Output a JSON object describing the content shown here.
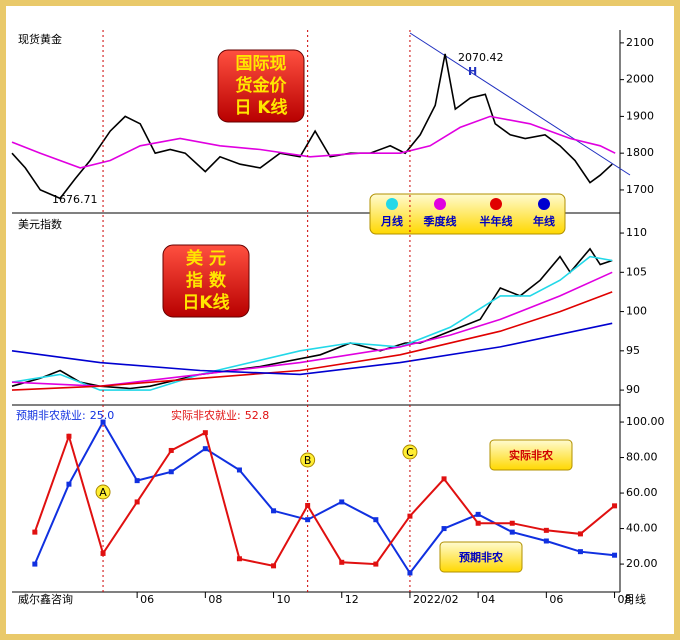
{
  "chart_data": [
    {
      "type": "line",
      "title": "现货黄金",
      "badge": [
        "国际现",
        "货金价",
        "日 K线"
      ],
      "annotations": {
        "high": "2070.42",
        "low": "1676.71",
        "mark": "H"
      },
      "xlim": [
        -0.67,
        17.16
      ],
      "ylim": [
        1640,
        2135
      ],
      "yticks": [
        1700,
        1800,
        1900,
        2000,
        2100
      ],
      "series": [
        {
          "color": "#000000",
          "x": [
            -0.67,
            -0.28,
            0.16,
            0.74,
            1.18,
            1.62,
            2.21,
            2.65,
            3.09,
            3.53,
            3.97,
            4.41,
            5.0,
            5.43,
            6.02,
            6.61,
            7.19,
            7.78,
            8.22,
            8.66,
            9.25,
            9.83,
            10.42,
            10.86,
            11.3,
            11.74,
            12.03,
            12.33,
            12.77,
            13.21,
            13.5,
            13.94,
            14.38,
            14.96,
            15.4,
            15.84,
            16.28,
            16.58,
            16.93
          ],
          "values": [
            1800,
            1760,
            1700,
            1677,
            1730,
            1780,
            1860,
            1900,
            1880,
            1800,
            1810,
            1800,
            1750,
            1790,
            1770,
            1760,
            1800,
            1790,
            1860,
            1790,
            1800,
            1800,
            1820,
            1800,
            1850,
            1930,
            2070,
            1920,
            1950,
            1960,
            1880,
            1850,
            1840,
            1850,
            1820,
            1780,
            1720,
            1740,
            1770
          ]
        },
        {
          "color": "#e000e0",
          "x": [
            -0.67,
            0.16,
            1.33,
            2.21,
            3.09,
            4.26,
            5.43,
            6.61,
            8.07,
            9.54,
            10.71,
            11.59,
            12.47,
            13.35,
            14.52,
            15.7,
            16.58,
            17.02
          ],
          "values": [
            1830,
            1800,
            1760,
            1780,
            1820,
            1840,
            1820,
            1810,
            1790,
            1800,
            1800,
            1820,
            1870,
            1900,
            1880,
            1840,
            1820,
            1800
          ]
        }
      ]
    },
    {
      "type": "line",
      "title": "美元指数",
      "badge": [
        "美 元",
        "指 数",
        "日K线"
      ],
      "xlim": [
        -0.67,
        17.16
      ],
      "ylim": [
        88.1,
        112.3
      ],
      "yticks": [
        90,
        95,
        100,
        105,
        110
      ],
      "series": [
        {
          "color": "#000000",
          "x": [
            -0.67,
            0.16,
            0.74,
            1.33,
            1.91,
            2.79,
            3.38,
            4.85,
            6.61,
            8.37,
            9.25,
            10.13,
            10.86,
            11.3,
            11.89,
            12.47,
            13.06,
            13.65,
            14.23,
            14.82,
            15.4,
            15.7,
            16.28,
            16.58,
            16.93
          ],
          "values": [
            90.5,
            91.5,
            92.5,
            91,
            90.5,
            90.2,
            90.5,
            92,
            93,
            94.5,
            96,
            95,
            96,
            96,
            97,
            98,
            99,
            103,
            102,
            104,
            107,
            105,
            108,
            106,
            106.5
          ]
        },
        {
          "name": "月线",
          "color": "#22d8e8",
          "x": [
            -0.67,
            0.74,
            1.91,
            3.38,
            4.85,
            7.78,
            9.25,
            10.71,
            12.18,
            13.65,
            14.52,
            15.4,
            16.28,
            16.93
          ],
          "values": [
            91,
            92,
            90,
            90,
            92,
            95,
            96,
            95.5,
            98,
            102,
            102,
            104,
            107,
            106.5
          ]
        },
        {
          "name": "季度线",
          "color": "#e000e0",
          "x": [
            -0.67,
            1.91,
            4.85,
            7.78,
            10.71,
            12.18,
            13.65,
            15.4,
            16.93
          ],
          "values": [
            91,
            90.5,
            92,
            93.5,
            95.5,
            97,
            99,
            102,
            105
          ]
        },
        {
          "name": "半年线",
          "color": "#e00000",
          "x": [
            -0.67,
            1.91,
            4.85,
            7.78,
            10.71,
            13.65,
            15.4,
            16.93
          ],
          "values": [
            90,
            90.5,
            91.5,
            92.5,
            94.5,
            97.5,
            100,
            102.5
          ]
        },
        {
          "name": "年线",
          "color": "#0000d0",
          "x": [
            -0.67,
            1.91,
            4.85,
            7.78,
            10.71,
            13.65,
            16.93
          ],
          "values": [
            95,
            93.5,
            92.5,
            92,
            93.5,
            95.5,
            98.5
          ]
        }
      ]
    },
    {
      "type": "line",
      "readouts": [
        {
          "label": "预期非农就业:",
          "value_label": "25.0"
        },
        {
          "label": "实际非农就业:",
          "value_label": "52.8"
        }
      ],
      "events": [
        {
          "label": "A",
          "x": 2
        },
        {
          "label": "B",
          "x": 8
        },
        {
          "label": "C",
          "x": 11
        }
      ],
      "xlim": [
        -0.67,
        17.16
      ],
      "ylim": [
        5.4,
        109.6
      ],
      "yticks": [
        {
          "value": 20,
          "label": "20.00"
        },
        {
          "value": 40,
          "label": "40.00"
        },
        {
          "value": 60,
          "label": "60.00"
        },
        {
          "value": 80,
          "label": "80.00"
        },
        {
          "value": 100,
          "label": "100.00"
        }
      ],
      "xticks": [
        {
          "value": 3,
          "label": "06"
        },
        {
          "value": 5,
          "label": "08"
        },
        {
          "value": 7,
          "label": "10"
        },
        {
          "value": 9,
          "label": "12"
        },
        {
          "value": 11,
          "label": "2022/02"
        },
        {
          "value": 13,
          "label": "04"
        },
        {
          "value": 15,
          "label": "06"
        },
        {
          "value": 17,
          "label": "08"
        }
      ],
      "series": [
        {
          "name": "预期非农",
          "color": "#1030e0",
          "x": [
            0,
            1,
            2,
            3,
            4,
            5,
            6,
            7,
            8,
            9,
            10,
            11,
            12,
            13,
            14,
            15,
            16,
            17
          ],
          "values": [
            20,
            65,
            100,
            67,
            72,
            85,
            73,
            50,
            45,
            55,
            45,
            15,
            40,
            48,
            38,
            33,
            27,
            25
          ]
        },
        {
          "name": "实际非农",
          "color": "#e01010",
          "x": [
            0,
            1,
            2,
            3,
            4,
            5,
            6,
            7,
            8,
            9,
            10,
            11,
            12,
            13,
            14,
            15,
            16,
            17
          ],
          "values": [
            38,
            92,
            26,
            55,
            84,
            94,
            23,
            19,
            53,
            21,
            20,
            47,
            68,
            43,
            43,
            39,
            37,
            52.8
          ]
        }
      ]
    }
  ],
  "footer": {
    "source": "威尔鑫咨询",
    "period": "月线"
  }
}
